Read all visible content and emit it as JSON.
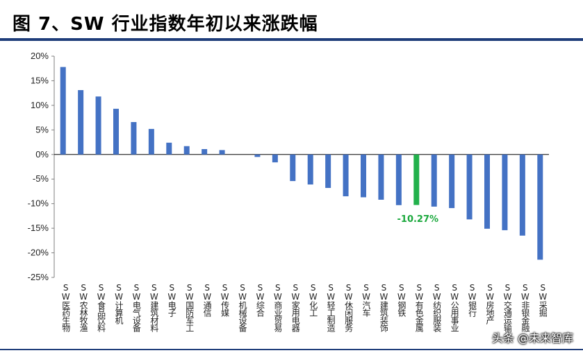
{
  "header": {
    "title": "图 7、SW 行业指数年初以来涨跌幅"
  },
  "watermark": "头条 @未来智库",
  "chart_data": {
    "type": "bar",
    "categories": [
      "SW医药生物",
      "SW农林牧渔",
      "SW食品饮料",
      "SW计算机",
      "SW电气设备",
      "SW建筑材料",
      "SW电子",
      "SW国防军工",
      "SW通信",
      "SW传媒",
      "SW机械设备",
      "SW综合",
      "SW商业贸易",
      "SW家用电器",
      "SW化工",
      "SW轻工制造",
      "SW休闲服务",
      "SW汽车",
      "SW建筑装饰",
      "SW钢铁",
      "SW有色金属",
      "SW纺织服装",
      "SW公用事业",
      "SW银行",
      "SW房地产",
      "SW交通运输",
      "SW非银金融",
      "SW采掘"
    ],
    "values": [
      17.8,
      13.1,
      11.8,
      9.3,
      6.6,
      5.2,
      2.4,
      1.7,
      1.1,
      0.9,
      0.0,
      -0.5,
      -1.6,
      -5.4,
      -6.1,
      -6.8,
      -8.5,
      -8.7,
      -9.2,
      -10.3,
      -10.27,
      -10.6,
      -10.9,
      -13.2,
      -15.1,
      -15.4,
      -16.5,
      -21.4
    ],
    "highlight_index": 20,
    "highlight_label": "-10.27%",
    "ylim": [
      -25,
      20
    ],
    "yticks": [
      "-25%",
      "-20%",
      "-15%",
      "-10%",
      "-5%",
      "0%",
      "5%",
      "10%",
      "15%",
      "20%"
    ],
    "ytick_values": [
      -25,
      -20,
      -15,
      -10,
      -5,
      0,
      5,
      10,
      15,
      20
    ],
    "grid": false,
    "colors": {
      "bar": "#4472c4",
      "highlight": "#22b14c",
      "label": "#1aa83c"
    }
  }
}
